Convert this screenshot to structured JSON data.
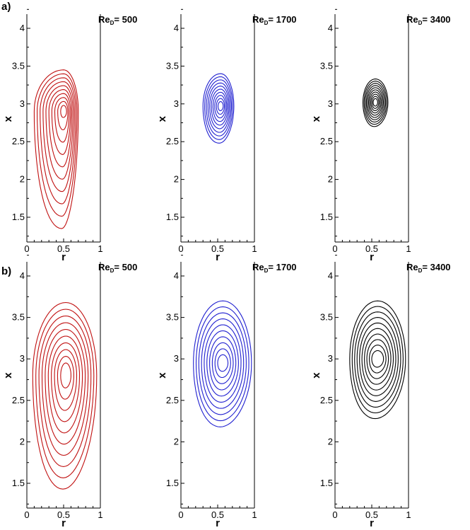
{
  "panel_labels": [
    "a)",
    "b)"
  ],
  "chart_data": [
    {
      "type": "contour",
      "panel": "a)",
      "title_main": "Re",
      "title_sub": "D",
      "title_value": "= 500",
      "color": "#c01010",
      "xlabel": "r",
      "ylabel": "x",
      "xlim": [
        0,
        1
      ],
      "ylim": [
        1.2,
        4.3
      ],
      "xticks": [
        0,
        0.5,
        1
      ],
      "xtick_labels": [
        "0",
        "0.5",
        "1"
      ],
      "yticks": [
        1.5,
        2,
        2.5,
        3,
        3.5,
        4
      ],
      "ytick_labels": [
        "1.5",
        "2",
        "2.5",
        "3",
        "3.5",
        "4"
      ],
      "center": [
        0.5,
        2.9
      ],
      "levels": 10,
      "outer": {
        "rmin": 0.1,
        "rmax": 0.7,
        "xmin": 1.35,
        "xmax": 3.45
      },
      "inner": {
        "rx": 0.04,
        "ry": 0.08
      }
    },
    {
      "type": "contour",
      "panel": "a)",
      "title_main": "Re",
      "title_sub": "D",
      "title_value": "= 1700",
      "color": "#2020d0",
      "xlabel": "r",
      "ylabel": "x",
      "xlim": [
        0,
        1
      ],
      "ylim": [
        1.2,
        4.3
      ],
      "xticks": [
        0,
        0.5,
        1
      ],
      "xtick_labels": [
        "0",
        "0.5",
        "1"
      ],
      "yticks": [
        1.5,
        2,
        2.5,
        3,
        3.5,
        4
      ],
      "ytick_labels": [
        "1.5",
        "2",
        "2.5",
        "3",
        "3.5",
        "4"
      ],
      "center": [
        0.54,
        2.97
      ],
      "levels": 10,
      "outer": {
        "rmin": 0.3,
        "rmax": 0.72,
        "xmin": 2.48,
        "xmax": 3.4
      },
      "inner": {
        "rx": 0.035,
        "ry": 0.06
      }
    },
    {
      "type": "contour",
      "panel": "a)",
      "title_main": "Re",
      "title_sub": "D",
      "title_value": "= 3400",
      "color": "#000000",
      "xlabel": "r",
      "ylabel": "x",
      "xlim": [
        0,
        1
      ],
      "ylim": [
        1.2,
        4.3
      ],
      "xticks": [
        0,
        0.5,
        1
      ],
      "xtick_labels": [
        "0",
        "0.5",
        "1"
      ],
      "yticks": [
        1.5,
        2,
        2.5,
        3,
        3.5,
        4
      ],
      "ytick_labels": [
        "1.5",
        "2",
        "2.5",
        "3",
        "3.5",
        "4"
      ],
      "center": [
        0.55,
        3.02
      ],
      "levels": 10,
      "outer": {
        "rmin": 0.38,
        "rmax": 0.72,
        "xmin": 2.7,
        "xmax": 3.33
      },
      "inner": {
        "rx": 0.03,
        "ry": 0.05
      }
    },
    {
      "type": "contour",
      "panel": "b)",
      "title_main": "Re",
      "title_sub": "D",
      "title_value": "= 500",
      "color": "#c01010",
      "xlabel": "r",
      "ylabel": "x",
      "xlim": [
        0,
        1
      ],
      "ylim": [
        1.2,
        4.3
      ],
      "xticks": [
        0,
        0.5,
        1
      ],
      "xtick_labels": [
        "0",
        "0.5",
        "1"
      ],
      "yticks": [
        1.5,
        2,
        2.5,
        3,
        3.5,
        4
      ],
      "ytick_labels": [
        "1.5",
        "2",
        "2.5",
        "3",
        "3.5",
        "4"
      ],
      "center": [
        0.53,
        2.8
      ],
      "levels": 10,
      "outer": {
        "rmin": 0.08,
        "rmax": 0.95,
        "xmin": 1.43,
        "xmax": 3.68
      },
      "inner": {
        "rx": 0.07,
        "ry": 0.15
      }
    },
    {
      "type": "contour",
      "panel": "b)",
      "title_main": "Re",
      "title_sub": "D",
      "title_value": "= 1700",
      "color": "#2020d0",
      "xlabel": "r",
      "ylabel": "x",
      "xlim": [
        0,
        1
      ],
      "ylim": [
        1.2,
        4.3
      ],
      "xticks": [
        0,
        0.5,
        1
      ],
      "xtick_labels": [
        "0",
        "0.5",
        "1"
      ],
      "yticks": [
        1.5,
        2,
        2.5,
        3,
        3.5,
        4
      ],
      "ytick_labels": [
        "1.5",
        "2",
        "2.5",
        "3",
        "3.5",
        "4"
      ],
      "center": [
        0.57,
        2.95
      ],
      "levels": 10,
      "outer": {
        "rmin": 0.17,
        "rmax": 0.96,
        "xmin": 2.18,
        "xmax": 3.7
      },
      "inner": {
        "rx": 0.07,
        "ry": 0.1
      }
    },
    {
      "type": "contour",
      "panel": "b)",
      "title_main": "Re",
      "title_sub": "D",
      "title_value": "= 3400",
      "color": "#000000",
      "xlabel": "r",
      "ylabel": "x",
      "xlim": [
        0,
        1
      ],
      "ylim": [
        1.2,
        4.3
      ],
      "xticks": [
        0,
        0.5,
        1
      ],
      "xtick_labels": [
        "0",
        "0.5",
        "1"
      ],
      "yticks": [
        1.5,
        2,
        2.5,
        3,
        3.5,
        4
      ],
      "ytick_labels": [
        "1.5",
        "2",
        "2.5",
        "3",
        "3.5",
        "4"
      ],
      "center": [
        0.58,
        3.0
      ],
      "levels": 10,
      "outer": {
        "rmin": 0.2,
        "rmax": 0.96,
        "xmin": 2.28,
        "xmax": 3.7
      },
      "inner": {
        "rx": 0.08,
        "ry": 0.1
      }
    }
  ]
}
